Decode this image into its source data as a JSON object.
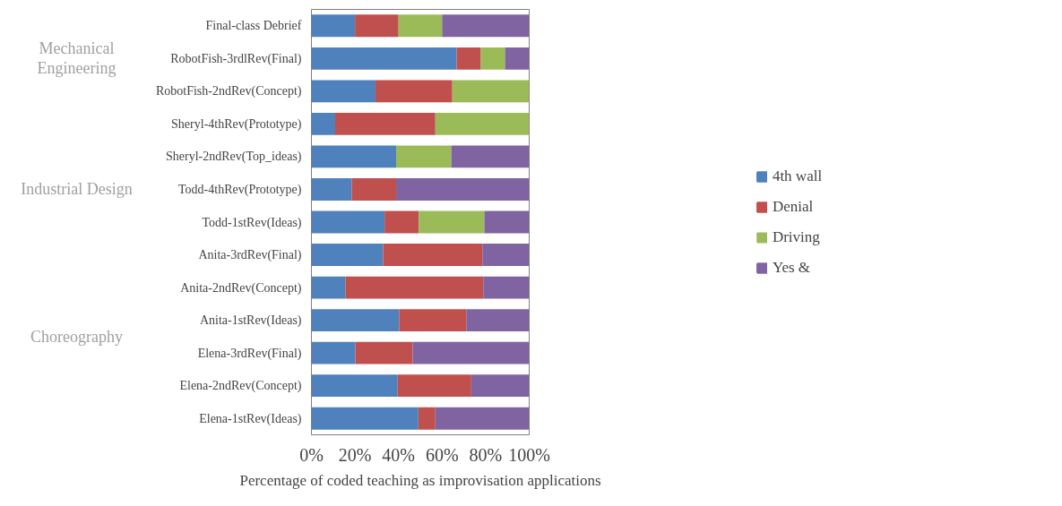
{
  "chart_data": {
    "type": "bar",
    "orientation": "horizontal",
    "stacked": true,
    "xlabel": "Percentage of coded teaching as improvisation applications",
    "categories": [
      "Final-class Debrief",
      "RobotFish-3rdlRev(Final)",
      "RobotFish-2ndRev(Concept)",
      "Sheryl-4thRev(Prototype)",
      "Sheryl-2ndRev(Top_ideas)",
      "Todd-4thRev(Prototype)",
      "Todd-1stRev(Ideas)",
      "Anita-3rdRev(Final)",
      "Anita-2ndRev(Concept)",
      "Anita-1stRev(Ideas)",
      "Elena-3rdRev(Final)",
      "Elena-2ndRev(Concept)",
      "Elena-1stRev(Ideas)"
    ],
    "series": [
      {
        "name": "4th wall",
        "color": "#4f81bd",
        "values": [
          20,
          66.7,
          29.4,
          10.9,
          38.9,
          18.5,
          33.6,
          32.9,
          15.6,
          40.3,
          20.2,
          39.6,
          49.1
        ]
      },
      {
        "name": "Denial",
        "color": "#c0504d",
        "values": [
          20,
          11.1,
          35.3,
          46,
          0,
          20.4,
          15.7,
          45.6,
          63.3,
          30.8,
          26.3,
          33.8,
          7.8
        ]
      },
      {
        "name": "Driving",
        "color": "#9bbb59",
        "values": [
          20,
          11.1,
          35.3,
          43.1,
          25.3,
          0,
          30.1,
          0,
          0,
          0,
          0,
          0,
          0
        ]
      },
      {
        "name": "Yes &",
        "color": "#8064a2",
        "values": [
          40,
          11.1,
          0,
          0,
          35.8,
          61.1,
          20.6,
          21.5,
          21.1,
          28.9,
          53.5,
          26.6,
          43.1
        ]
      }
    ],
    "xlim": [
      0,
      100
    ],
    "xticks": [
      {
        "value": 0,
        "label": "0%"
      },
      {
        "value": 20,
        "label": "20%"
      },
      {
        "value": 40,
        "label": "40%"
      },
      {
        "value": 60,
        "label": "60%"
      },
      {
        "value": 80,
        "label": "80%"
      },
      {
        "value": 100,
        "label": "100%"
      }
    ],
    "annotations": [
      "Mechanical\nEngineering",
      "Industrial Design",
      "Choreography"
    ],
    "grid": false,
    "legend": "right"
  }
}
